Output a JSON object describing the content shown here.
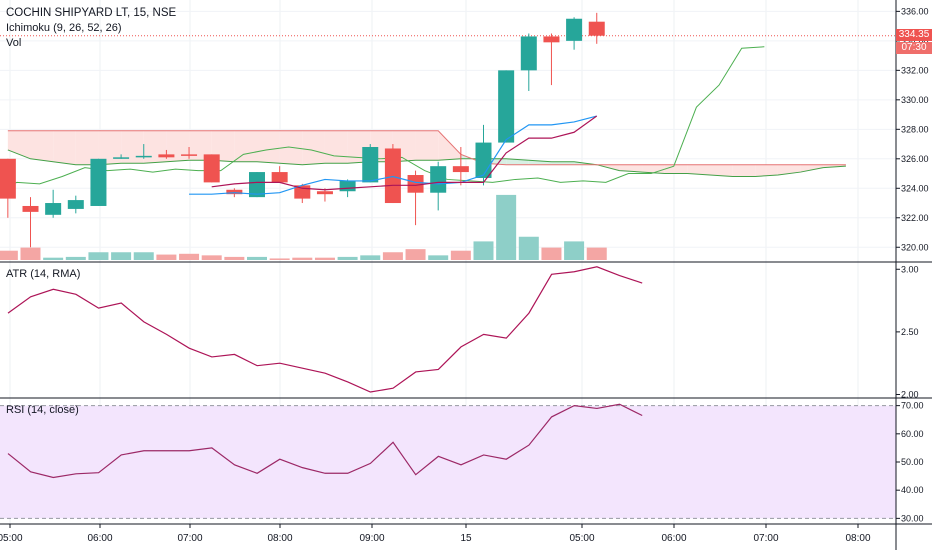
{
  "header": {
    "title": "COCHIN SHIPYARD LT, 15, NSE",
    "indicator_ichimoku": "Ichimoku (9, 26, 52, 26)",
    "indicator_vol": "Vol",
    "atr_label": "ATR (14, RMA)",
    "rsi_label": "RSI (14, close)"
  },
  "price_tag": {
    "price": "334.35",
    "countdown": "07:30"
  },
  "colors": {
    "up": "#26a69a",
    "down": "#ef5350",
    "vol_up": "#8ecfc8",
    "vol_down": "#f4a6a4",
    "tenkan": "#2196f3",
    "kijun": "#ad1457",
    "atr": "#ad1457",
    "rsi": "#9c2866",
    "rsi_fill": "#f3e5fd",
    "cloud_red": "#fde3e1",
    "cloud_green": "#d8efe4",
    "span_a": "#43a047",
    "span_b": "#e57373",
    "lagging": "#4caf50"
  },
  "chart_data": [
    {
      "type": "candlestick",
      "title": "COCHIN SHIPYARD LT, 15, NSE",
      "x_tick_labels": [
        "05:00",
        "06:00",
        "07:00",
        "08:00",
        "09:00",
        "15",
        "05:00",
        "06:00",
        "07:00",
        "08:00"
      ],
      "ylim": [
        319,
        336.5
      ],
      "y_ticks": [
        320,
        322,
        324,
        326,
        328,
        330,
        332,
        334,
        336
      ],
      "last_price": 334.35,
      "candles": [
        {
          "o": 326.0,
          "h": 326.0,
          "l": 322.0,
          "c": 323.3
        },
        {
          "o": 322.8,
          "h": 323.4,
          "l": 320.0,
          "c": 322.4
        },
        {
          "o": 322.2,
          "h": 323.9,
          "l": 322.0,
          "c": 323.0
        },
        {
          "o": 322.6,
          "h": 323.5,
          "l": 322.3,
          "c": 323.2
        },
        {
          "o": 322.8,
          "h": 326.0,
          "l": 322.8,
          "c": 326.0
        },
        {
          "o": 326.0,
          "h": 326.3,
          "l": 326.0,
          "c": 326.1
        },
        {
          "o": 326.1,
          "h": 327.0,
          "l": 326.0,
          "c": 326.2
        },
        {
          "o": 326.3,
          "h": 326.6,
          "l": 326.0,
          "c": 326.1
        },
        {
          "o": 326.3,
          "h": 326.8,
          "l": 326.0,
          "c": 326.2
        },
        {
          "o": 326.3,
          "h": 326.3,
          "l": 324.4,
          "c": 324.4
        },
        {
          "o": 323.9,
          "h": 324.0,
          "l": 323.4,
          "c": 323.6
        },
        {
          "o": 323.4,
          "h": 325.1,
          "l": 323.4,
          "c": 325.1
        },
        {
          "o": 325.1,
          "h": 325.5,
          "l": 324.4,
          "c": 324.4
        },
        {
          "o": 324.2,
          "h": 324.3,
          "l": 323.0,
          "c": 323.3
        },
        {
          "o": 323.8,
          "h": 324.0,
          "l": 323.1,
          "c": 323.6
        },
        {
          "o": 323.8,
          "h": 324.6,
          "l": 323.4,
          "c": 324.5
        },
        {
          "o": 324.4,
          "h": 327.0,
          "l": 324.4,
          "c": 326.8
        },
        {
          "o": 326.7,
          "h": 327.0,
          "l": 323.0,
          "c": 323.0
        },
        {
          "o": 324.9,
          "h": 325.2,
          "l": 321.5,
          "c": 323.7
        },
        {
          "o": 323.7,
          "h": 325.8,
          "l": 322.5,
          "c": 325.5
        },
        {
          "o": 325.5,
          "h": 326.8,
          "l": 324.2,
          "c": 325.1
        },
        {
          "o": 324.7,
          "h": 328.3,
          "l": 324.2,
          "c": 327.1
        },
        {
          "o": 327.1,
          "h": 332.0,
          "l": 327.1,
          "c": 332.0
        },
        {
          "o": 332.0,
          "h": 334.5,
          "l": 330.6,
          "c": 334.3
        },
        {
          "o": 334.3,
          "h": 334.5,
          "l": 331.0,
          "c": 333.9
        },
        {
          "o": 334.0,
          "h": 335.6,
          "l": 333.4,
          "c": 335.5
        },
        {
          "o": 335.3,
          "h": 335.9,
          "l": 333.8,
          "c": 334.35
        }
      ],
      "volume": [
        0.6,
        0.8,
        0.15,
        0.2,
        0.5,
        0.5,
        0.5,
        0.35,
        0.4,
        0.3,
        0.2,
        0.2,
        0.1,
        0.15,
        0.15,
        0.2,
        0.3,
        0.5,
        0.7,
        0.3,
        0.6,
        1.2,
        4.2,
        1.5,
        0.8,
        1.2,
        0.8
      ],
      "volume_up": [
        false,
        false,
        true,
        true,
        true,
        true,
        true,
        false,
        false,
        false,
        false,
        true,
        false,
        false,
        false,
        true,
        true,
        false,
        false,
        true,
        false,
        true,
        true,
        true,
        false,
        true,
        false
      ],
      "tenkan": [
        null,
        null,
        null,
        null,
        null,
        null,
        null,
        null,
        323.6,
        323.6,
        323.7,
        323.6,
        323.7,
        324.2,
        324.6,
        324.5,
        324.5,
        324.8,
        324.4,
        324.3,
        324.4,
        324.9,
        327.3,
        328.3,
        328.3,
        328.5,
        328.9
      ],
      "kijun": [
        null,
        null,
        null,
        null,
        null,
        null,
        null,
        null,
        null,
        324.1,
        324.3,
        324.4,
        324.4,
        324.0,
        323.9,
        324.0,
        324.1,
        324.2,
        324.2,
        324.4,
        324.4,
        324.4,
        326.4,
        327.4,
        327.4,
        327.8,
        328.9
      ],
      "span_a": [
        326.6,
        326.0,
        325.8,
        325.6,
        325.6,
        325.7,
        325.7,
        325.8,
        325.9,
        325.9,
        325.8,
        325.8,
        325.7,
        325.6,
        325.7,
        325.7,
        325.8,
        325.8,
        325.9,
        325.9,
        326.0,
        326.0,
        326.0,
        325.9,
        325.8,
        325.8,
        325.6,
        325.2,
        325.1,
        325.0,
        325.0,
        324.9,
        324.8,
        324.8,
        324.9,
        325.1,
        325.4,
        325.5
      ],
      "span_b": [
        327.9,
        327.9,
        327.9,
        327.9,
        327.9,
        327.9,
        327.9,
        327.9,
        327.9,
        327.9,
        327.9,
        327.9,
        327.9,
        327.9,
        327.9,
        327.9,
        327.9,
        327.9,
        327.9,
        327.9,
        326.3,
        325.7,
        325.6,
        325.6,
        325.6,
        325.6,
        325.6,
        325.6,
        325.6,
        325.6,
        325.6,
        325.6,
        325.6,
        325.6,
        325.6,
        325.6,
        325.6,
        325.6
      ],
      "lagging": [
        323.8,
        324.4,
        324.3,
        324.8,
        325.4,
        325.2,
        325.3,
        325.1,
        325.3,
        325.2,
        325.2,
        326.3,
        326.6,
        326.8,
        326.6,
        326.2,
        326.1,
        326.0,
        326.1,
        325.2,
        324.6,
        324.5,
        324.4,
        324.6,
        324.7,
        324.4,
        324.5,
        324.4,
        325.0,
        325.0,
        325.5,
        329.5,
        331.0,
        333.5,
        333.6
      ]
    },
    {
      "type": "line",
      "title": "ATR (14, RMA)",
      "ylim": [
        1.98,
        3.05
      ],
      "y_tick_labels": [
        "3.00",
        "2.50",
        "2.00"
      ],
      "values": [
        2.65,
        2.78,
        2.84,
        2.8,
        2.69,
        2.73,
        2.58,
        2.48,
        2.37,
        2.3,
        2.32,
        2.23,
        2.25,
        2.21,
        2.17,
        2.1,
        2.02,
        2.05,
        2.18,
        2.2,
        2.38,
        2.48,
        2.45,
        2.65,
        2.96,
        2.98,
        3.02,
        2.95,
        2.89
      ]
    },
    {
      "type": "line",
      "title": "RSI (14, close)",
      "ylim": [
        28,
        72
      ],
      "y_tick_labels": [
        "70.00",
        "60.00",
        "50.00",
        "40.00",
        "30.00"
      ],
      "band": [
        30,
        70
      ],
      "values": [
        53,
        46.5,
        44.5,
        45.8,
        46.2,
        52.5,
        54,
        54,
        54,
        55,
        49,
        46,
        51,
        48,
        46,
        46,
        49.5,
        57,
        45.5,
        52,
        49,
        52.5,
        51,
        56,
        66,
        70,
        69,
        70.5,
        66.5
      ]
    }
  ]
}
